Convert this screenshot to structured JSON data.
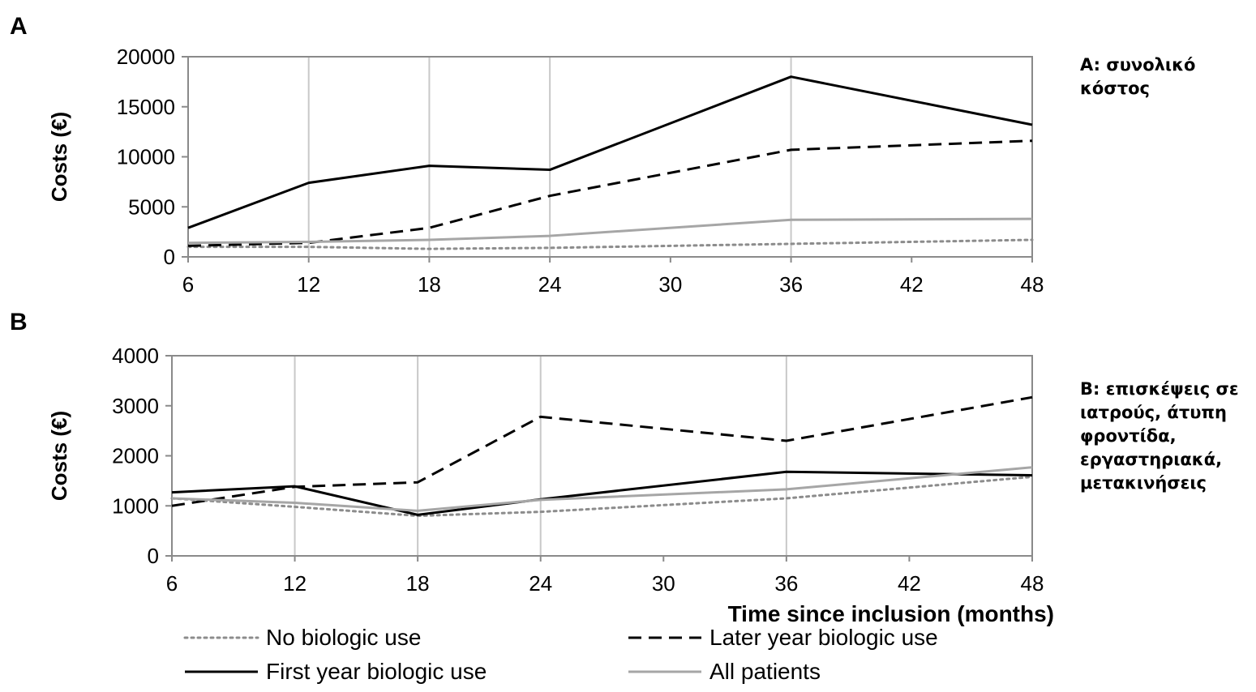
{
  "chart_data": [
    {
      "type": "line",
      "panel_label": "A",
      "title": "",
      "xlabel": "",
      "ylabel": "Costs (€)",
      "xlim": [
        6,
        48
      ],
      "ylim": [
        0,
        20000
      ],
      "x_ticks": [
        6,
        12,
        18,
        24,
        30,
        36,
        42,
        48
      ],
      "y_ticks": [
        0,
        5000,
        10000,
        15000,
        20000
      ],
      "grid": "vertical gridlines at 12, 18, 24, 36",
      "series": [
        {
          "name": "No biologic use",
          "style": "dotted",
          "color": "#8c8c8c",
          "x": [
            6,
            12,
            18,
            24,
            36,
            48
          ],
          "y": [
            1000,
            1000,
            800,
            900,
            1300,
            1700
          ]
        },
        {
          "name": "Later year biologic use",
          "style": "dashed",
          "color": "#000000",
          "x": [
            6,
            12,
            18,
            24,
            36,
            48
          ],
          "y": [
            1100,
            1400,
            2900,
            6100,
            10700,
            11600
          ]
        },
        {
          "name": "First year biologic use",
          "style": "solid",
          "color": "#000000",
          "x": [
            6,
            12,
            18,
            24,
            36,
            48
          ],
          "y": [
            2900,
            7400,
            9100,
            8700,
            18000,
            13200
          ]
        },
        {
          "name": "All patients",
          "style": "solid",
          "color": "#a6a6a6",
          "x": [
            6,
            12,
            18,
            24,
            36,
            48
          ],
          "y": [
            1400,
            1500,
            1700,
            2100,
            3700,
            3800
          ]
        }
      ]
    },
    {
      "type": "line",
      "panel_label": "B",
      "title": "",
      "xlabel": "Time since inclusion (months)",
      "ylabel": "Costs (€)",
      "xlim": [
        6,
        48
      ],
      "ylim": [
        0,
        4000
      ],
      "x_ticks": [
        6,
        12,
        18,
        24,
        30,
        36,
        42,
        48
      ],
      "y_ticks": [
        0,
        1000,
        2000,
        3000,
        4000
      ],
      "grid": "vertical gridlines at 12, 18, 24, 36",
      "series": [
        {
          "name": "No biologic use",
          "style": "dotted",
          "color": "#8c8c8c",
          "x": [
            6,
            12,
            18,
            24,
            36,
            48
          ],
          "y": [
            1150,
            980,
            800,
            880,
            1150,
            1580
          ]
        },
        {
          "name": "Later year biologic use",
          "style": "dashed",
          "color": "#000000",
          "x": [
            6,
            12,
            18,
            24,
            36,
            48
          ],
          "y": [
            1000,
            1380,
            1470,
            2780,
            2300,
            3170
          ]
        },
        {
          "name": "First year biologic use",
          "style": "solid",
          "color": "#000000",
          "x": [
            6,
            12,
            18,
            24,
            36,
            48
          ],
          "y": [
            1270,
            1390,
            820,
            1130,
            1680,
            1610
          ]
        },
        {
          "name": "All patients",
          "style": "solid",
          "color": "#a6a6a6",
          "x": [
            6,
            12,
            18,
            24,
            36,
            48
          ],
          "y": [
            1150,
            1060,
            900,
            1120,
            1330,
            1770
          ]
        }
      ]
    }
  ],
  "legend": {
    "items": [
      {
        "label": "No biologic use",
        "style": "dotted",
        "color": "#8c8c8c"
      },
      {
        "label": "Later year biologic use",
        "style": "dashed",
        "color": "#000000"
      },
      {
        "label": "First year biologic use",
        "style": "solid",
        "color": "#000000"
      },
      {
        "label": "All patients",
        "style": "solid",
        "color": "#a6a6a6"
      }
    ]
  },
  "annotations": {
    "a": [
      "A: συνολικό",
      "κόστος"
    ],
    "b": [
      "B: επισκέψεις σε",
      "ιατρούς, άτυπη",
      "φροντίδα,",
      "εργαστηριακά,",
      "μετακινήσεις"
    ]
  }
}
